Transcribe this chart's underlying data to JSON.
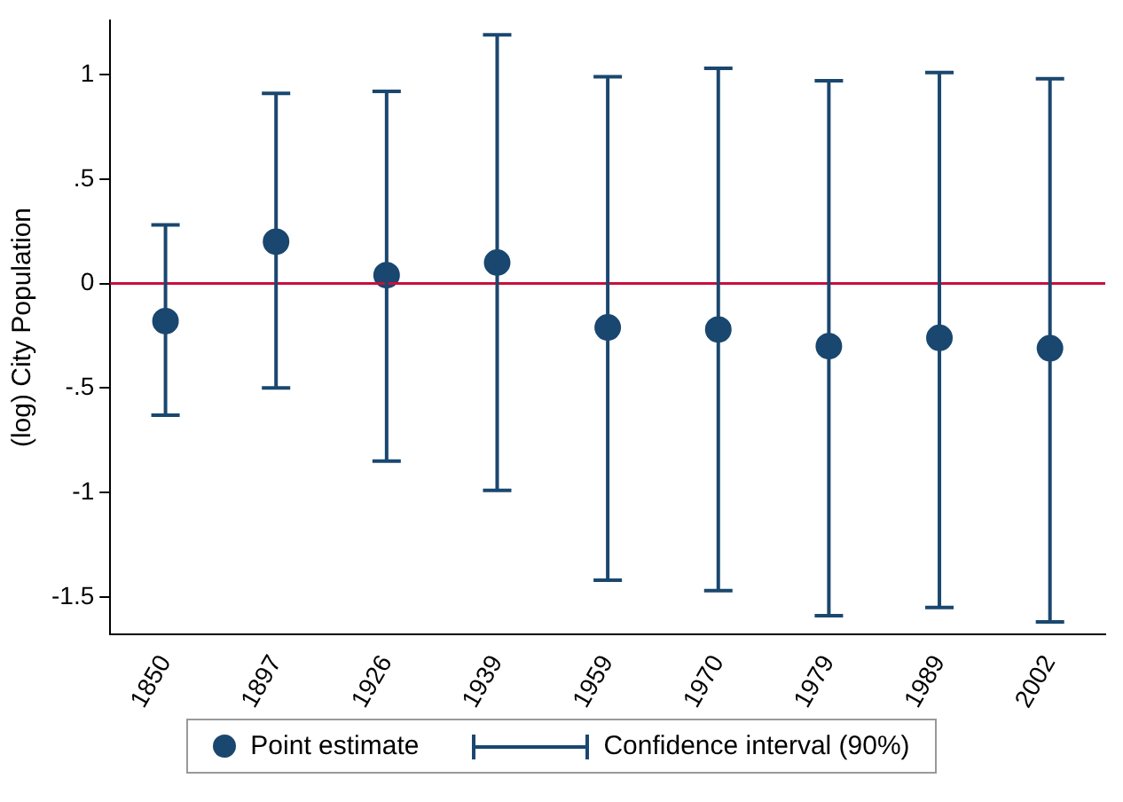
{
  "chart_data": {
    "type": "scatter",
    "ylabel": "(log) City Population",
    "categories": [
      "1850",
      "1897",
      "1926",
      "1939",
      "1959",
      "1970",
      "1979",
      "1989",
      "2002"
    ],
    "series": [
      {
        "name": "Point estimate",
        "color": "#1a476f",
        "values": [
          -0.18,
          0.2,
          0.04,
          0.1,
          -0.21,
          -0.22,
          -0.3,
          -0.26,
          -0.31
        ],
        "errors": [
          [
            -0.63,
            0.28
          ],
          [
            -0.5,
            0.91
          ],
          [
            -0.85,
            0.92
          ],
          [
            -0.99,
            1.19
          ],
          [
            -1.42,
            0.99
          ],
          [
            -1.47,
            1.03
          ],
          [
            -1.59,
            0.97
          ],
          [
            -1.55,
            1.01
          ],
          [
            -1.62,
            0.98
          ]
        ]
      }
    ],
    "annotations": [
      "Confidence interval (90%)"
    ],
    "ylim": [
      -1.68,
      1.26
    ],
    "yticks": [
      {
        "value": -1.5,
        "label": "-1.5"
      },
      {
        "value": -1,
        "label": "-1"
      },
      {
        "value": -0.5,
        "label": "-.5"
      },
      {
        "value": 0,
        "label": "0"
      },
      {
        "value": 0.5,
        "label": ".5"
      },
      {
        "value": 1,
        "label": "1"
      }
    ],
    "ref_lines": [
      {
        "axis": "y",
        "value": 0,
        "color": "#c8103c"
      }
    ],
    "marker": "circle",
    "grid": false,
    "legend": "bottom"
  }
}
